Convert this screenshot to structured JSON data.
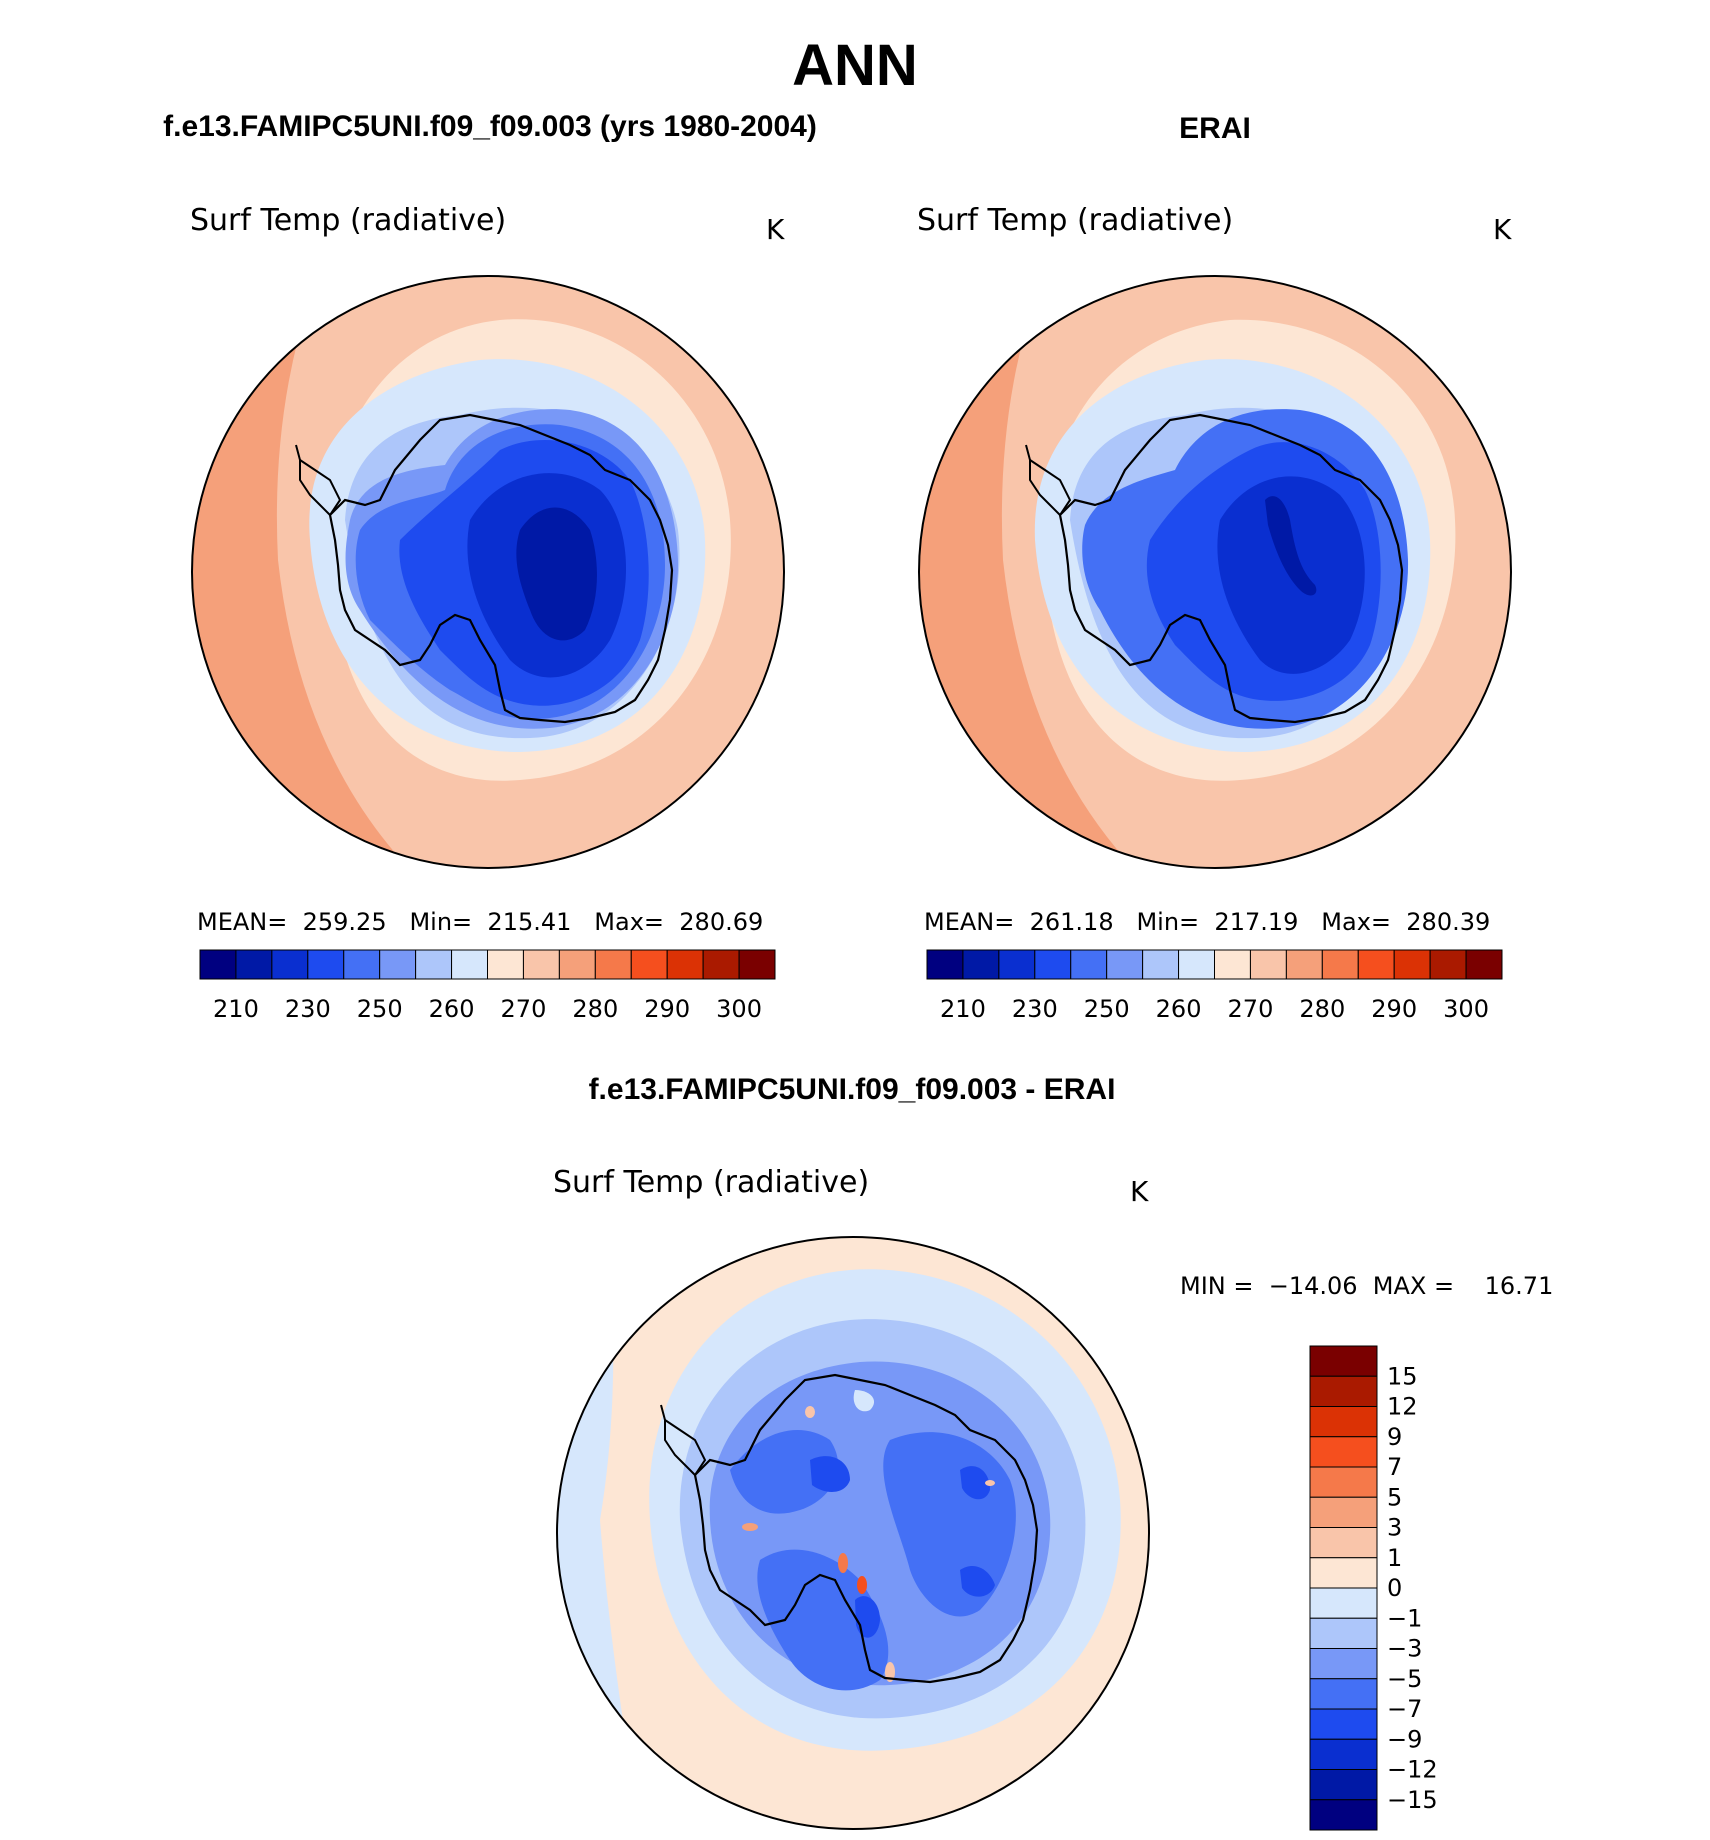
{
  "title": "ANN",
  "panels": {
    "model": {
      "heading": "f.e13.FAMIPC5UNI.f09_f09.003 (yrs 1980-2004)",
      "variable": "Surf Temp (radiative)",
      "units": "K",
      "stats": "MEAN=  259.25   Min=  215.41   Max=  280.69"
    },
    "obs": {
      "heading": "ERAI",
      "variable": "Surf Temp (radiative)",
      "units": "K",
      "stats": "MEAN=  261.18   Min=  217.19   Max=  280.39"
    },
    "diff": {
      "heading": "f.e13.FAMIPC5UNI.f09_f09.003 - ERAI",
      "variable": "Surf Temp (radiative)",
      "units": "K",
      "stats": "MIN =  −14.06  MAX =    16.71"
    }
  },
  "abs_colorbar": {
    "labels": [
      "210",
      "230",
      "250",
      "260",
      "270",
      "280",
      "290",
      "300"
    ],
    "colors": [
      "#000080",
      "#0019a6",
      "#0a2fd0",
      "#1e4bef",
      "#4470f5",
      "#7898f7",
      "#adc6fa",
      "#d6e7fc",
      "#fde6d4",
      "#f9c5aa",
      "#f5a07a",
      "#f5794a",
      "#f54f1e",
      "#db3205",
      "#aa1a00",
      "#7a0000"
    ]
  },
  "diff_colorbar": {
    "labels": [
      "15",
      "12",
      "9",
      "7",
      "5",
      "3",
      "1",
      "0",
      "−1",
      "−3",
      "−5",
      "−7",
      "−9",
      "−12",
      "−15"
    ],
    "colors": [
      "#7a0000",
      "#aa1a00",
      "#db3205",
      "#f54f1e",
      "#f5794a",
      "#f5a07a",
      "#f9c5aa",
      "#fde6d4",
      "#d6e7fc",
      "#adc6fa",
      "#7898f7",
      "#4470f5",
      "#1e4bef",
      "#0a2fd0",
      "#0019a6",
      "#000080"
    ]
  }
}
